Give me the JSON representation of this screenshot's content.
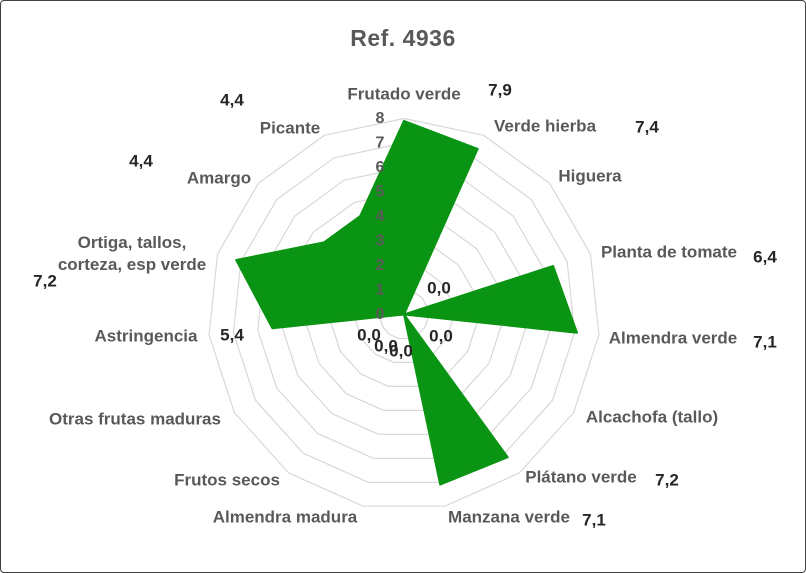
{
  "title": "Ref. 4936",
  "chart_data": {
    "type": "radar",
    "title": "Ref. 4936",
    "categories": [
      "Frutado verde",
      "Verde hierba",
      "Higuera",
      "Planta de tomate",
      "Almendra verde",
      "Alcachofa (tallo)",
      "Plátano verde",
      "Manzana verde",
      "Almendra madura",
      "Frutos secos",
      "Otras frutas maduras",
      "Astringencia",
      "Ortiga, tallos, corteza, esp verde",
      "Amargo",
      "Picante"
    ],
    "series": [
      {
        "name": "Ref. 4936",
        "values": [
          7.9,
          7.4,
          0.0,
          6.4,
          7.1,
          0.0,
          7.2,
          7.1,
          0.0,
          0.0,
          0.0,
          5.4,
          7.2,
          4.4,
          4.4
        ]
      }
    ],
    "value_labels": [
      "7,9",
      "7,4",
      "0,0",
      "6,4",
      "7,1",
      "0,0",
      "7,2",
      "7,1",
      "0,0",
      "0,0",
      "0,0",
      "5,4",
      "7,2",
      "4,4",
      "4,4"
    ],
    "axis_range": [
      0,
      8
    ],
    "axis_ticks": [
      "0",
      "1",
      "2",
      "3",
      "4",
      "5",
      "6",
      "7",
      "8"
    ],
    "grid": true,
    "legend": "none",
    "colors": {
      "fill": "#0a9413",
      "grid": "#d8d8d8",
      "category_label": "#595959",
      "value_label": "#262626",
      "title": "#595959"
    }
  }
}
